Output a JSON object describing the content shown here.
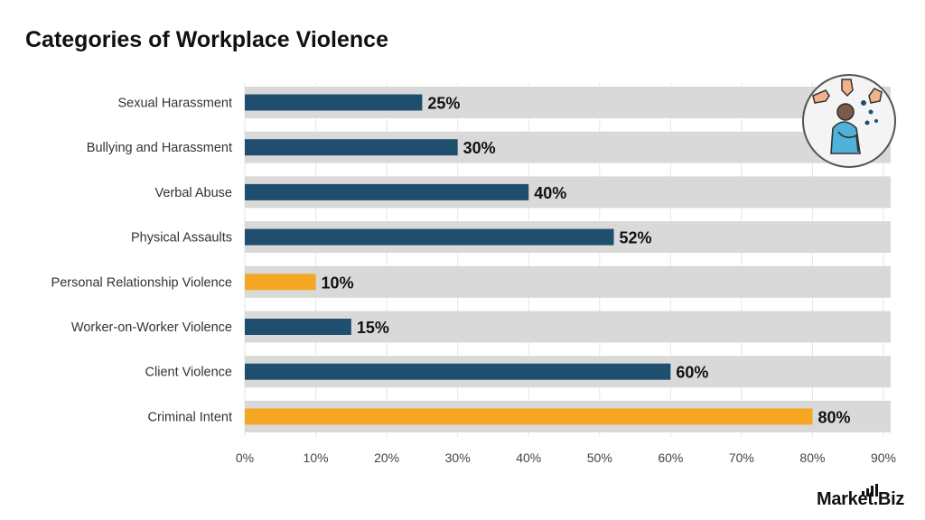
{
  "title": "Categories of Workplace Violence",
  "brand": "Market.Biz",
  "icon": "person-being-blamed-icon",
  "colors": {
    "primary_bar": "#1f4e6f",
    "highlight_bar": "#f5a623",
    "track": "#d9d9d9"
  },
  "chart_data": {
    "type": "bar",
    "orientation": "horizontal",
    "title": "Categories of Workplace Violence",
    "xlabel": "",
    "ylabel": "",
    "xlim": [
      0,
      90
    ],
    "xticks": [
      "0%",
      "10%",
      "20%",
      "30%",
      "40%",
      "50%",
      "60%",
      "70%",
      "80%",
      "90%"
    ],
    "grid": true,
    "categories": [
      "Sexual Harassment",
      "Bullying and Harassment",
      "Verbal Abuse",
      "Physical Assaults",
      "Personal Relationship Violence",
      "Worker-on-Worker Violence",
      "Client Violence",
      "Criminal Intent"
    ],
    "values": [
      25,
      30,
      40,
      52,
      10,
      15,
      60,
      80
    ],
    "labels": [
      "25%",
      "30%",
      "40%",
      "52%",
      "10%",
      "15%",
      "60%",
      "80%"
    ],
    "highlighted": [
      false,
      false,
      false,
      false,
      true,
      false,
      false,
      true
    ]
  }
}
